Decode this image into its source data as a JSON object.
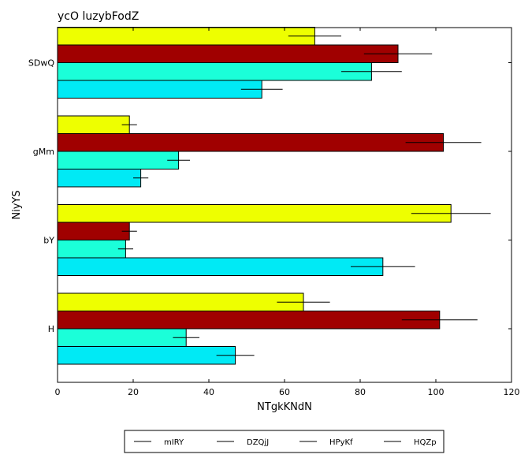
{
  "chart_data": {
    "type": "bar",
    "orientation": "horizontal",
    "title": "ycO luzybFodZ",
    "xlabel": "NTgkKNdN",
    "ylabel": "NiyYS",
    "xlim": [
      0,
      120
    ],
    "xticks": [
      0,
      20,
      40,
      60,
      80,
      100,
      120
    ],
    "categories": [
      "H",
      "bY",
      "gMm",
      "SDwQ"
    ],
    "grid": false,
    "legend_position": "bottom-center",
    "series": [
      {
        "name": "mIRY",
        "color": "#eeff00",
        "values": [
          65,
          104,
          19,
          68
        ],
        "errors": [
          7,
          10.5,
          2,
          7
        ]
      },
      {
        "name": "DZQjJ",
        "color": "#a00000",
        "values": [
          101,
          19,
          102,
          90
        ],
        "errors": [
          10,
          2,
          10,
          9
        ]
      },
      {
        "name": "HPyKf",
        "color": "#1bffd9",
        "values": [
          34,
          18,
          32,
          83
        ],
        "errors": [
          3.5,
          2,
          3,
          8
        ]
      },
      {
        "name": "HQZp",
        "color": "#00eaf5",
        "values": [
          47,
          86,
          22,
          54
        ],
        "errors": [
          5,
          8.5,
          2,
          5.5
        ]
      }
    ]
  }
}
